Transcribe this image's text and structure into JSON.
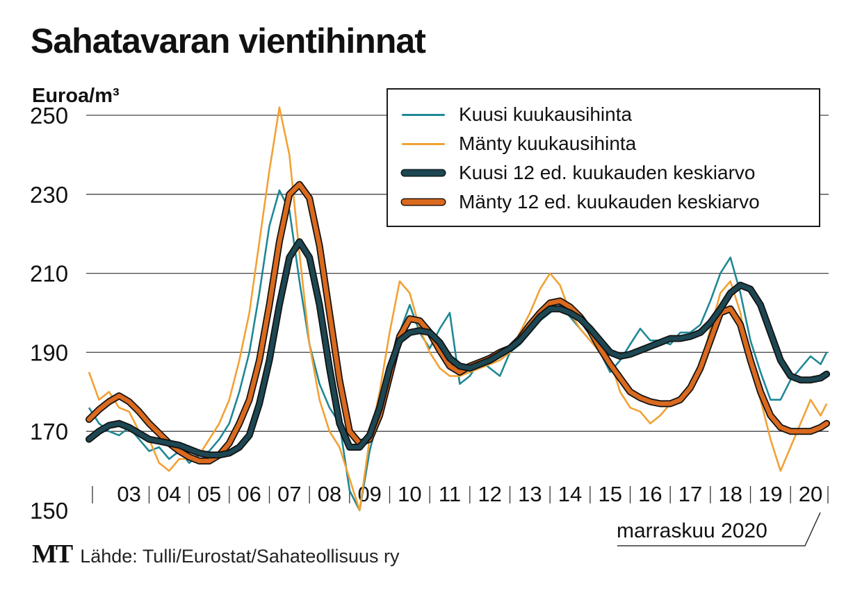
{
  "title": "Sahatavaran vientihinnat",
  "footer": {
    "logo": "MT",
    "source": "Lähde: Tulli/Eurostat/Sahateollisuus ry",
    "date": "marraskuu 2020"
  },
  "colors": {
    "kuusi_monthly": "#1f8796",
    "manty_monthly": "#f2a133",
    "kuusi_avg": "#1d4752",
    "manty_avg": "#d96a1f",
    "grid": "#444444"
  },
  "chart_data": {
    "type": "line",
    "title": "Sahatavaran vientihinnat",
    "ylabel": "Euroa/m³",
    "xlabel": "",
    "ylim": [
      150,
      255
    ],
    "xlim": [
      2002.5,
      2020.95
    ],
    "yticks": [
      150,
      170,
      190,
      210,
      230,
      250
    ],
    "xticks": [
      "03",
      "04",
      "05",
      "06",
      "07",
      "08",
      "09",
      "10",
      "11",
      "12",
      "13",
      "14",
      "15",
      "16",
      "17",
      "18",
      "19",
      "20"
    ],
    "grid": true,
    "legend_position": "top-right",
    "series": [
      {
        "name": "Kuusi kuukausihinta",
        "style": "thin",
        "x": [
          2002.5,
          2002.75,
          2003.0,
          2003.25,
          2003.5,
          2003.75,
          2004.0,
          2004.25,
          2004.5,
          2004.75,
          2005.0,
          2005.25,
          2005.5,
          2005.75,
          2006.0,
          2006.25,
          2006.5,
          2006.75,
          2007.0,
          2007.25,
          2007.5,
          2007.75,
          2008.0,
          2008.25,
          2008.5,
          2008.75,
          2009.0,
          2009.25,
          2009.5,
          2009.75,
          2010.0,
          2010.25,
          2010.5,
          2010.75,
          2011.0,
          2011.25,
          2011.5,
          2011.75,
          2012.0,
          2012.25,
          2012.5,
          2012.75,
          2013.0,
          2013.25,
          2013.5,
          2013.75,
          2014.0,
          2014.25,
          2014.5,
          2014.75,
          2015.0,
          2015.25,
          2015.5,
          2015.75,
          2016.0,
          2016.25,
          2016.5,
          2016.75,
          2017.0,
          2017.25,
          2017.5,
          2017.75,
          2018.0,
          2018.25,
          2018.5,
          2018.75,
          2019.0,
          2019.25,
          2019.5,
          2019.75,
          2020.0,
          2020.25,
          2020.5,
          2020.75,
          2020.9
        ],
        "values": [
          176,
          172,
          170,
          169,
          171,
          168,
          165,
          166,
          163,
          165,
          162,
          164,
          165,
          168,
          172,
          180,
          190,
          205,
          222,
          231,
          226,
          208,
          192,
          182,
          176,
          172,
          155,
          150,
          165,
          175,
          183,
          195,
          202,
          195,
          191,
          196,
          200,
          182,
          184,
          188,
          186,
          184,
          190,
          192,
          195,
          198,
          200,
          202,
          199,
          196,
          193,
          190,
          185,
          188,
          192,
          196,
          193,
          193,
          192,
          195,
          195,
          197,
          203,
          210,
          214,
          205,
          193,
          185,
          178,
          178,
          183,
          186,
          189,
          187,
          190
        ]
      },
      {
        "name": "Mänty kuukausihinta",
        "style": "thin",
        "x": [
          2002.5,
          2002.75,
          2003.0,
          2003.25,
          2003.5,
          2003.75,
          2004.0,
          2004.25,
          2004.5,
          2004.75,
          2005.0,
          2005.25,
          2005.5,
          2005.75,
          2006.0,
          2006.25,
          2006.5,
          2006.75,
          2007.0,
          2007.25,
          2007.5,
          2007.75,
          2008.0,
          2008.25,
          2008.5,
          2008.75,
          2009.0,
          2009.25,
          2009.5,
          2009.75,
          2010.0,
          2010.25,
          2010.5,
          2010.75,
          2011.0,
          2011.25,
          2011.5,
          2011.75,
          2012.0,
          2012.25,
          2012.5,
          2012.75,
          2013.0,
          2013.25,
          2013.5,
          2013.75,
          2014.0,
          2014.25,
          2014.5,
          2014.75,
          2015.0,
          2015.25,
          2015.5,
          2015.75,
          2016.0,
          2016.25,
          2016.5,
          2016.75,
          2017.0,
          2017.25,
          2017.5,
          2017.75,
          2018.0,
          2018.25,
          2018.5,
          2018.75,
          2019.0,
          2019.25,
          2019.5,
          2019.75,
          2020.0,
          2020.25,
          2020.5,
          2020.75,
          2020.9
        ],
        "values": [
          185,
          178,
          180,
          176,
          175,
          170,
          168,
          162,
          160,
          163,
          163,
          164,
          168,
          172,
          178,
          188,
          200,
          218,
          236,
          252,
          240,
          215,
          192,
          178,
          170,
          166,
          158,
          150,
          168,
          180,
          195,
          208,
          205,
          196,
          190,
          186,
          184,
          184,
          185,
          186,
          187,
          188,
          190,
          195,
          200,
          206,
          210,
          207,
          200,
          196,
          193,
          190,
          188,
          180,
          176,
          175,
          172,
          174,
          177,
          178,
          180,
          186,
          196,
          205,
          208,
          200,
          186,
          178,
          168,
          160,
          166,
          172,
          178,
          174,
          177
        ]
      },
      {
        "name": "Kuusi 12 ed. kuukauden keskiarvo",
        "style": "thick",
        "x": [
          2002.5,
          2002.75,
          2003.0,
          2003.25,
          2003.5,
          2003.75,
          2004.0,
          2004.25,
          2004.5,
          2004.75,
          2005.0,
          2005.25,
          2005.5,
          2005.75,
          2006.0,
          2006.25,
          2006.5,
          2006.75,
          2007.0,
          2007.25,
          2007.5,
          2007.75,
          2008.0,
          2008.25,
          2008.5,
          2008.75,
          2009.0,
          2009.25,
          2009.5,
          2009.75,
          2010.0,
          2010.25,
          2010.5,
          2010.75,
          2011.0,
          2011.25,
          2011.5,
          2011.75,
          2012.0,
          2012.25,
          2012.5,
          2012.75,
          2013.0,
          2013.25,
          2013.5,
          2013.75,
          2014.0,
          2014.25,
          2014.5,
          2014.75,
          2015.0,
          2015.25,
          2015.5,
          2015.75,
          2016.0,
          2016.25,
          2016.5,
          2016.75,
          2017.0,
          2017.25,
          2017.5,
          2017.75,
          2018.0,
          2018.25,
          2018.5,
          2018.75,
          2019.0,
          2019.25,
          2019.5,
          2019.75,
          2020.0,
          2020.25,
          2020.5,
          2020.75,
          2020.9
        ],
        "values": [
          168,
          170,
          171.5,
          172,
          171,
          169.5,
          168,
          167.5,
          167,
          166.5,
          165.5,
          164.5,
          164,
          164,
          164.5,
          166,
          169,
          177,
          188,
          202,
          214,
          218,
          214,
          202,
          186,
          172,
          166,
          166,
          169,
          176,
          186,
          193,
          195,
          195.5,
          195,
          192.5,
          188.5,
          186.5,
          186,
          187,
          188,
          189.5,
          191,
          193,
          196,
          199,
          201,
          201,
          200,
          198.5,
          196,
          193,
          190,
          189,
          189.5,
          190.5,
          191.5,
          192.5,
          193.5,
          193.5,
          194,
          195,
          197.5,
          201,
          205,
          207,
          206,
          202,
          195,
          188,
          184,
          183,
          183,
          183.5,
          184.5
        ]
      },
      {
        "name": "Mänty 12 ed. kuukauden keskiarvo",
        "style": "thick",
        "x": [
          2002.5,
          2002.75,
          2003.0,
          2003.25,
          2003.5,
          2003.75,
          2004.0,
          2004.25,
          2004.5,
          2004.75,
          2005.0,
          2005.25,
          2005.5,
          2005.75,
          2006.0,
          2006.25,
          2006.5,
          2006.75,
          2007.0,
          2007.25,
          2007.5,
          2007.75,
          2008.0,
          2008.25,
          2008.5,
          2008.75,
          2009.0,
          2009.25,
          2009.5,
          2009.75,
          2010.0,
          2010.25,
          2010.5,
          2010.75,
          2011.0,
          2011.25,
          2011.5,
          2011.75,
          2012.0,
          2012.25,
          2012.5,
          2012.75,
          2013.0,
          2013.25,
          2013.5,
          2013.75,
          2014.0,
          2014.25,
          2014.5,
          2014.75,
          2015.0,
          2015.25,
          2015.5,
          2015.75,
          2016.0,
          2016.25,
          2016.5,
          2016.75,
          2017.0,
          2017.25,
          2017.5,
          2017.75,
          2018.0,
          2018.25,
          2018.5,
          2018.75,
          2019.0,
          2019.25,
          2019.5,
          2019.75,
          2020.0,
          2020.25,
          2020.5,
          2020.75,
          2020.9
        ],
        "values": [
          173,
          175.5,
          177.5,
          179,
          177.5,
          175,
          172,
          169.5,
          167,
          165,
          163.5,
          162.5,
          162.5,
          164,
          167,
          172,
          178,
          188,
          202,
          218,
          230,
          232.5,
          229,
          217,
          200,
          183,
          170,
          167,
          168,
          174,
          184,
          194,
          198.5,
          198,
          195,
          190.5,
          186.5,
          185,
          186.5,
          187.5,
          188.5,
          190,
          191,
          193.5,
          197,
          200,
          202.5,
          203,
          201.5,
          199,
          195.5,
          191,
          187,
          183.5,
          180,
          178.5,
          177.5,
          177,
          177,
          178,
          181,
          186,
          193,
          200,
          201,
          197,
          188,
          180,
          174,
          171,
          170,
          170,
          170,
          171,
          172
        ]
      }
    ]
  }
}
